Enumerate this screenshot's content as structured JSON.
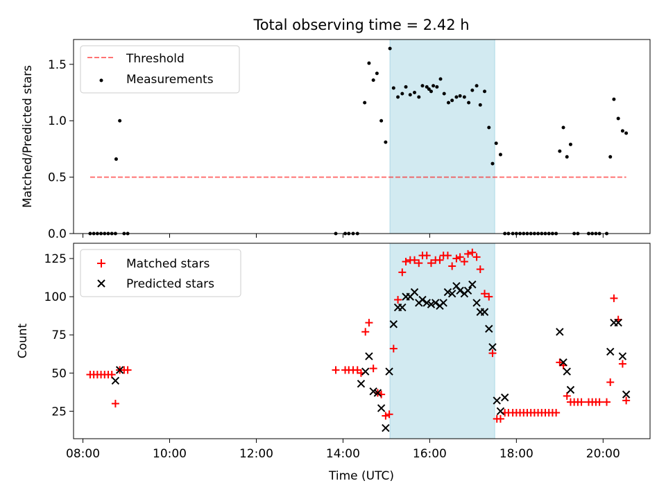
{
  "chart_data": {
    "type": "scatter",
    "title": "Total observing time = 2.42 h",
    "xlabel": "Time (UTC)",
    "x_unit": "hours UTC",
    "xlim": [
      "07:47",
      "21:05"
    ],
    "x_ticks": [
      "08:00",
      "10:00",
      "12:00",
      "14:00",
      "16:00",
      "18:00",
      "20:00"
    ],
    "highlight_span": {
      "start": "15:05",
      "end": "17:30",
      "color": "#add8e6"
    },
    "panels": [
      {
        "id": "ratio",
        "ylabel": "Matched/Predicted stars",
        "ylim": [
          0,
          1.72
        ],
        "y_ticks": [
          "0.0",
          "0.5",
          "1.0",
          "1.5"
        ],
        "legend_position": "top-left",
        "threshold": {
          "name": "Threshold",
          "value": 0.5,
          "x_start": "08:10",
          "x_end": "20:32",
          "color": "#ff0000"
        },
        "series": [
          {
            "name": "Measurements",
            "marker": "dot",
            "color": "#000000",
            "points": [
              [
                "08:10",
                0
              ],
              [
                "08:15",
                0
              ],
              [
                "08:20",
                0
              ],
              [
                "08:25",
                0
              ],
              [
                "08:30",
                0
              ],
              [
                "08:35",
                0
              ],
              [
                "08:40",
                0
              ],
              [
                "08:45",
                0
              ],
              [
                "08:46",
                0.66
              ],
              [
                "08:51",
                1.0
              ],
              [
                "08:57",
                0
              ],
              [
                "09:02",
                0
              ],
              [
                "13:50",
                0
              ],
              [
                "14:03",
                0
              ],
              [
                "14:08",
                0
              ],
              [
                "14:14",
                0
              ],
              [
                "14:20",
                0
              ],
              [
                "14:30",
                1.16
              ],
              [
                "14:36",
                1.51
              ],
              [
                "14:42",
                1.36
              ],
              [
                "14:47",
                1.42
              ],
              [
                "14:53",
                1.0
              ],
              [
                "14:59",
                0.81
              ],
              [
                "15:05",
                1.64
              ],
              [
                "15:10",
                1.29
              ],
              [
                "15:16",
                1.21
              ],
              [
                "15:22",
                1.24
              ],
              [
                "15:27",
                1.3
              ],
              [
                "15:33",
                1.23
              ],
              [
                "15:39",
                1.25
              ],
              [
                "15:45",
                1.21
              ],
              [
                "15:50",
                1.31
              ],
              [
                "15:56",
                1.3
              ],
              [
                "16:02",
                1.26
              ],
              [
                "15:59",
                1.28
              ],
              [
                "16:05",
                1.31
              ],
              [
                "16:10",
                1.3
              ],
              [
                "16:15",
                1.37
              ],
              [
                "16:20",
                1.24
              ],
              [
                "16:26",
                1.16
              ],
              [
                "16:31",
                1.18
              ],
              [
                "16:37",
                1.21
              ],
              [
                "16:42",
                1.22
              ],
              [
                "16:48",
                1.21
              ],
              [
                "16:54",
                1.16
              ],
              [
                "16:59",
                1.27
              ],
              [
                "17:05",
                1.31
              ],
              [
                "17:10",
                1.14
              ],
              [
                "17:16",
                1.26
              ],
              [
                "17:22",
                0.94
              ],
              [
                "17:27",
                0.62
              ],
              [
                "17:32",
                0.8
              ],
              [
                "17:38",
                0.7
              ],
              [
                "17:44",
                0
              ],
              [
                "17:49",
                0
              ],
              [
                "17:55",
                0
              ],
              [
                "18:00",
                0
              ],
              [
                "18:05",
                0
              ],
              [
                "18:10",
                0
              ],
              [
                "18:15",
                0
              ],
              [
                "18:20",
                0
              ],
              [
                "18:25",
                0
              ],
              [
                "18:30",
                0
              ],
              [
                "18:35",
                0
              ],
              [
                "18:40",
                0
              ],
              [
                "18:45",
                0
              ],
              [
                "18:50",
                0
              ],
              [
                "18:55",
                0
              ],
              [
                "19:00",
                0.73
              ],
              [
                "19:05",
                0.94
              ],
              [
                "19:10",
                0.68
              ],
              [
                "19:15",
                0.79
              ],
              [
                "19:20",
                0
              ],
              [
                "19:25",
                0
              ],
              [
                "19:40",
                0
              ],
              [
                "19:45",
                0
              ],
              [
                "19:50",
                0
              ],
              [
                "19:55",
                0
              ],
              [
                "20:05",
                0
              ],
              [
                "20:10",
                0.68
              ],
              [
                "20:15",
                1.19
              ],
              [
                "20:21",
                1.02
              ],
              [
                "20:27",
                0.91
              ],
              [
                "20:32",
                0.89
              ]
            ]
          }
        ]
      },
      {
        "id": "count",
        "ylabel": "Count",
        "ylim": [
          7,
          135
        ],
        "y_ticks": [
          "25",
          "50",
          "75",
          "100",
          "125"
        ],
        "legend_position": "top-left",
        "series": [
          {
            "name": "Matched stars",
            "marker": "plus",
            "color": "#ff0000",
            "points": [
              [
                "08:10",
                49
              ],
              [
                "08:15",
                49
              ],
              [
                "08:20",
                49
              ],
              [
                "08:25",
                49
              ],
              [
                "08:30",
                49
              ],
              [
                "08:35",
                49
              ],
              [
                "08:40",
                49
              ],
              [
                "08:45",
                30
              ],
              [
                "08:51",
                52
              ],
              [
                "08:57",
                52
              ],
              [
                "09:02",
                52
              ],
              [
                "13:50",
                52
              ],
              [
                "14:03",
                52
              ],
              [
                "14:08",
                52
              ],
              [
                "14:14",
                52
              ],
              [
                "14:20",
                52
              ],
              [
                "14:25",
                50
              ],
              [
                "14:31",
                77
              ],
              [
                "14:36",
                83
              ],
              [
                "14:42",
                53
              ],
              [
                "14:48",
                37
              ],
              [
                "14:53",
                36
              ],
              [
                "14:59",
                22
              ],
              [
                "15:04",
                23
              ],
              [
                "15:10",
                66
              ],
              [
                "15:16",
                98
              ],
              [
                "15:22",
                116
              ],
              [
                "15:27",
                123
              ],
              [
                "15:33",
                124
              ],
              [
                "15:39",
                124
              ],
              [
                "15:45",
                122
              ],
              [
                "15:50",
                127
              ],
              [
                "15:56",
                127
              ],
              [
                "16:02",
                122
              ],
              [
                "16:08",
                124
              ],
              [
                "16:14",
                124
              ],
              [
                "16:19",
                127
              ],
              [
                "16:25",
                127
              ],
              [
                "16:31",
                120
              ],
              [
                "16:37",
                125
              ],
              [
                "16:42",
                126
              ],
              [
                "16:48",
                123
              ],
              [
                "16:53",
                128
              ],
              [
                "16:59",
                129
              ],
              [
                "17:05",
                126
              ],
              [
                "17:10",
                118
              ],
              [
                "17:16",
                102
              ],
              [
                "17:22",
                100
              ],
              [
                "17:27",
                63
              ],
              [
                "17:33",
                20
              ],
              [
                "17:38",
                20
              ],
              [
                "17:44",
                24
              ],
              [
                "17:49",
                24
              ],
              [
                "17:55",
                24
              ],
              [
                "18:00",
                24
              ],
              [
                "18:05",
                24
              ],
              [
                "18:10",
                24
              ],
              [
                "18:15",
                24
              ],
              [
                "18:20",
                24
              ],
              [
                "18:25",
                24
              ],
              [
                "18:30",
                24
              ],
              [
                "18:35",
                24
              ],
              [
                "18:40",
                24
              ],
              [
                "18:45",
                24
              ],
              [
                "18:50",
                24
              ],
              [
                "18:55",
                24
              ],
              [
                "19:00",
                57
              ],
              [
                "19:05",
                55
              ],
              [
                "19:10",
                35
              ],
              [
                "19:15",
                31
              ],
              [
                "19:20",
                31
              ],
              [
                "19:25",
                31
              ],
              [
                "19:30",
                31
              ],
              [
                "19:40",
                31
              ],
              [
                "19:45",
                31
              ],
              [
                "19:50",
                31
              ],
              [
                "19:55",
                31
              ],
              [
                "20:05",
                31
              ],
              [
                "20:10",
                44
              ],
              [
                "20:15",
                99
              ],
              [
                "20:21",
                85
              ],
              [
                "20:27",
                56
              ],
              [
                "20:32",
                32
              ]
            ]
          },
          {
            "name": "Predicted stars",
            "marker": "x",
            "color": "#000000",
            "points": [
              [
                "08:45",
                45
              ],
              [
                "08:51",
                52
              ],
              [
                "14:25",
                43
              ],
              [
                "14:31",
                51
              ],
              [
                "14:36",
                61
              ],
              [
                "14:42",
                38
              ],
              [
                "14:48",
                37
              ],
              [
                "14:53",
                27
              ],
              [
                "14:59",
                14
              ],
              [
                "15:04",
                51
              ],
              [
                "15:10",
                82
              ],
              [
                "15:16",
                93
              ],
              [
                "15:22",
                93
              ],
              [
                "15:27",
                100
              ],
              [
                "15:33",
                100
              ],
              [
                "15:39",
                103
              ],
              [
                "15:45",
                96
              ],
              [
                "15:50",
                98
              ],
              [
                "15:56",
                96
              ],
              [
                "16:02",
                95
              ],
              [
                "16:08",
                96
              ],
              [
                "16:14",
                94
              ],
              [
                "16:19",
                96
              ],
              [
                "16:25",
                103
              ],
              [
                "16:31",
                102
              ],
              [
                "16:37",
                107
              ],
              [
                "16:42",
                104
              ],
              [
                "16:48",
                102
              ],
              [
                "16:53",
                104
              ],
              [
                "16:59",
                108
              ],
              [
                "17:05",
                96
              ],
              [
                "17:10",
                90
              ],
              [
                "17:16",
                90
              ],
              [
                "17:22",
                79
              ],
              [
                "17:27",
                67
              ],
              [
                "17:33",
                32
              ],
              [
                "17:38",
                25
              ],
              [
                "17:44",
                34
              ],
              [
                "19:00",
                77
              ],
              [
                "19:05",
                57
              ],
              [
                "19:10",
                51
              ],
              [
                "19:15",
                39
              ],
              [
                "20:10",
                64
              ],
              [
                "20:15",
                83
              ],
              [
                "20:21",
                83
              ],
              [
                "20:27",
                61
              ],
              [
                "20:32",
                36
              ]
            ]
          }
        ]
      }
    ]
  }
}
